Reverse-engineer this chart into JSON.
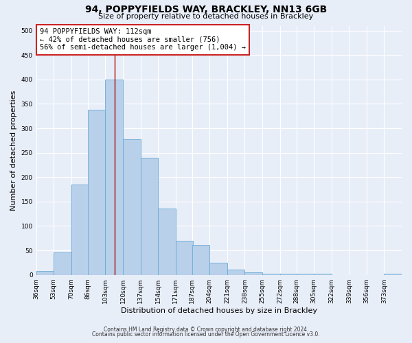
{
  "title": "94, POPPYFIELDS WAY, BRACKLEY, NN13 6GB",
  "subtitle": "Size of property relative to detached houses in Brackley",
  "xlabel": "Distribution of detached houses by size in Brackley",
  "ylabel": "Number of detached properties",
  "bin_labels": [
    "36sqm",
    "53sqm",
    "70sqm",
    "86sqm",
    "103sqm",
    "120sqm",
    "137sqm",
    "154sqm",
    "171sqm",
    "187sqm",
    "204sqm",
    "221sqm",
    "238sqm",
    "255sqm",
    "272sqm",
    "288sqm",
    "305sqm",
    "322sqm",
    "339sqm",
    "356sqm",
    "373sqm"
  ],
  "bin_left_edges": [
    36,
    53,
    70,
    86,
    103,
    120,
    137,
    154,
    171,
    187,
    204,
    221,
    238,
    255,
    272,
    288,
    305,
    322,
    339,
    356,
    373
  ],
  "bin_width": 17,
  "bar_heights": [
    8,
    46,
    185,
    338,
    400,
    277,
    240,
    136,
    70,
    62,
    25,
    11,
    5,
    3,
    2,
    2,
    2,
    0,
    0,
    0,
    3
  ],
  "bar_color": "#b8d0ea",
  "bar_edge_color": "#6aaad4",
  "property_line_x": 112,
  "property_line_color": "#aa0000",
  "annotation_box_text": "94 POPPYFIELDS WAY: 112sqm\n← 42% of detached houses are smaller (756)\n56% of semi-detached houses are larger (1,004) →",
  "annotation_box_color": "#ffffff",
  "annotation_box_edge_color": "#cc2222",
  "ylim": [
    0,
    510
  ],
  "yticks": [
    0,
    50,
    100,
    150,
    200,
    250,
    300,
    350,
    400,
    450,
    500
  ],
  "footer_line1": "Contains HM Land Registry data © Crown copyright and database right 2024.",
  "footer_line2": "Contains public sector information licensed under the Open Government Licence v3.0.",
  "background_color": "#e8eef8",
  "plot_bg_color": "#e8eef8",
  "grid_color": "#ffffff",
  "title_fontsize": 10,
  "subtitle_fontsize": 8,
  "axis_label_fontsize": 8,
  "tick_label_fontsize": 6.5,
  "annotation_fontsize": 7.5,
  "footer_fontsize": 5.5
}
